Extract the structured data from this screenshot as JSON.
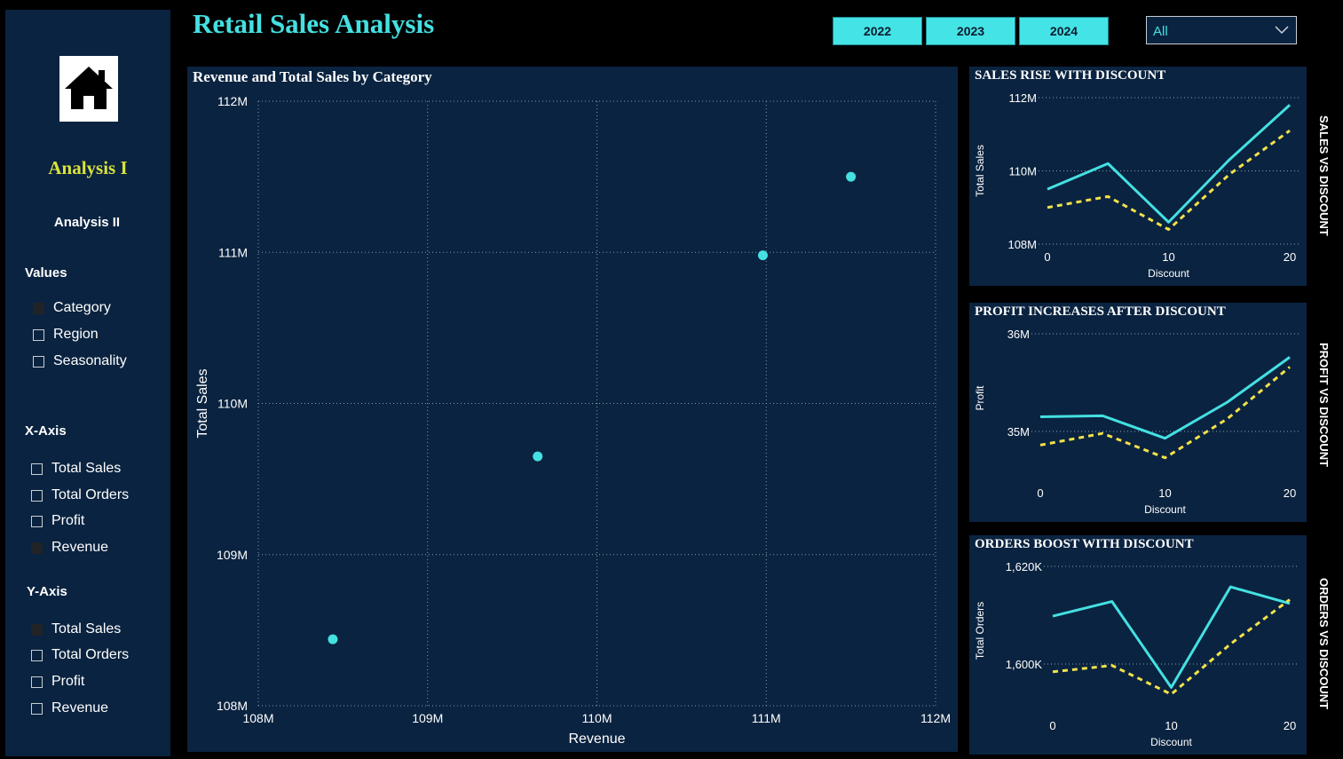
{
  "sidebar": {
    "analysis1": "Analysis I",
    "analysis2": "Analysis II",
    "values": {
      "heading": "Values",
      "items": [
        {
          "label": "Category",
          "checked": true
        },
        {
          "label": "Region",
          "checked": false
        },
        {
          "label": "Seasonality",
          "checked": false
        }
      ]
    },
    "xaxis": {
      "heading": "X-Axis",
      "items": [
        {
          "label": "Total Sales",
          "checked": false
        },
        {
          "label": "Total Orders",
          "checked": false
        },
        {
          "label": "Profit",
          "checked": false
        },
        {
          "label": "Revenue",
          "checked": true
        }
      ]
    },
    "yaxis": {
      "heading": "Y-Axis",
      "items": [
        {
          "label": "Total Sales",
          "checked": true
        },
        {
          "label": "Total Orders",
          "checked": false
        },
        {
          "label": "Profit",
          "checked": false
        },
        {
          "label": "Revenue",
          "checked": false
        }
      ]
    }
  },
  "header": {
    "title": "Retail Sales Analysis",
    "years": [
      "2022",
      "2023",
      "2024"
    ],
    "dropdown_value": "All"
  },
  "colors": {
    "accent": "#44e0e2",
    "dashed": "#f2e14a",
    "panel": "#0a2340",
    "nav_active": "#d8e23a"
  },
  "icons": {
    "home": "home-icon",
    "dropdown": "chevron-down-icon"
  },
  "side_labels": [
    "SALES VS DISCOUNT",
    "PROFIT VS DISCOUNT",
    "ORDERS VS DISCOUNT"
  ],
  "chart_data": [
    {
      "type": "scatter",
      "title": "Revenue and Total Sales by Category",
      "xlabel": "Revenue",
      "ylabel": "Total Sales",
      "xlim": [
        108,
        112
      ],
      "ylim": [
        108,
        112
      ],
      "x_ticks": [
        "108M",
        "109M",
        "110M",
        "111M",
        "112M"
      ],
      "y_ticks": [
        "108M",
        "109M",
        "110M",
        "111M",
        "112M"
      ],
      "grid": true,
      "points": [
        {
          "x": 108.44,
          "y": 108.44
        },
        {
          "x": 109.65,
          "y": 109.65
        },
        {
          "x": 110.98,
          "y": 110.98
        },
        {
          "x": 111.5,
          "y": 111.5
        }
      ]
    },
    {
      "type": "line",
      "title": "SALES RISE WITH DISCOUNT",
      "xlabel": "Discount",
      "ylabel": "Total Sales",
      "xlim": [
        0,
        20
      ],
      "ylim": [
        108,
        112
      ],
      "x_ticks": [
        "0",
        "10",
        "20"
      ],
      "y_ticks": [
        "108M",
        "110M",
        "112M"
      ],
      "x": [
        0,
        5,
        10,
        15,
        20
      ],
      "series": [
        {
          "values": [
            109.5,
            110.2,
            108.6,
            110.3,
            111.8
          ],
          "style": "solid"
        },
        {
          "values": [
            109.0,
            109.3,
            108.4,
            109.9,
            111.1
          ],
          "style": "dashed"
        }
      ]
    },
    {
      "type": "line",
      "title": "PROFIT INCREASES AFTER DISCOUNT",
      "xlabel": "Discount",
      "ylabel": "Profit",
      "xlim": [
        0,
        20
      ],
      "ylim": [
        34.4,
        36
      ],
      "x_ticks": [
        "0",
        "10",
        "20"
      ],
      "y_ticks": [
        "35M",
        "36M"
      ],
      "x": [
        0,
        5,
        10,
        15,
        20
      ],
      "series": [
        {
          "values": [
            35.15,
            35.16,
            34.93,
            35.3,
            35.76
          ],
          "style": "solid"
        },
        {
          "values": [
            34.86,
            34.98,
            34.73,
            35.13,
            35.66
          ],
          "style": "dashed"
        }
      ]
    },
    {
      "type": "line",
      "title": "ORDERS BOOST WITH DISCOUNT",
      "xlabel": "Discount",
      "ylabel": "Total Orders",
      "xlim": [
        0,
        20
      ],
      "ylim": [
        1590,
        1620
      ],
      "x_ticks": [
        "0",
        "10",
        "20"
      ],
      "y_ticks": [
        "1,600K",
        "1,620K"
      ],
      "x": [
        0,
        5,
        10,
        15,
        20
      ],
      "series": [
        {
          "values": [
            1609.8,
            1612.8,
            1595.2,
            1615.8,
            1612.4
          ],
          "style": "solid"
        },
        {
          "values": [
            1598.4,
            1599.7,
            1593.8,
            1604.1,
            1613.2
          ],
          "style": "dashed"
        }
      ]
    }
  ]
}
